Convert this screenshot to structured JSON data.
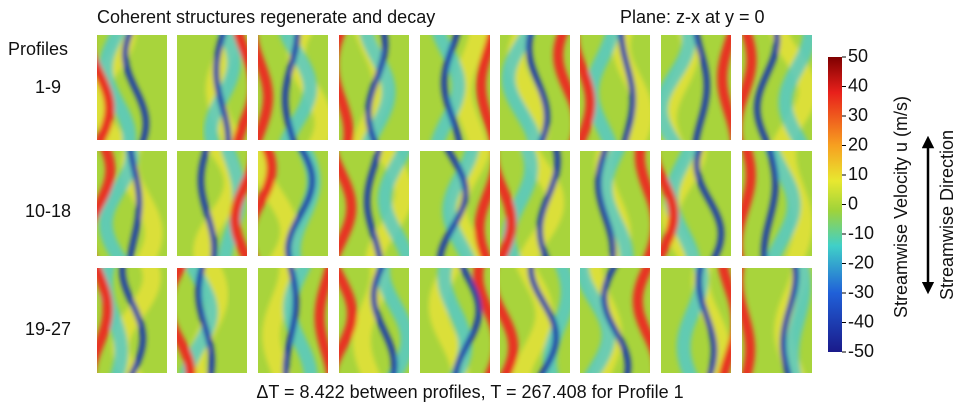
{
  "header": {
    "title": "Coherent structures regenerate and decay",
    "plane": "Plane: z-x at y = 0"
  },
  "rows": {
    "heading": "Profiles",
    "labels": [
      "1-9",
      "10-18",
      "19-27"
    ]
  },
  "colorbar": {
    "label": "Streamwise Velocity u (m/s)",
    "ticks": [
      "50",
      "40",
      "30",
      "20",
      "10",
      "0",
      "-10",
      "-20",
      "-30",
      "-40",
      "-50"
    ]
  },
  "direction": "Streamwise Direction",
  "footer": "ΔT = 8.422 between profiles, T = 267.408 for Profile 1"
}
